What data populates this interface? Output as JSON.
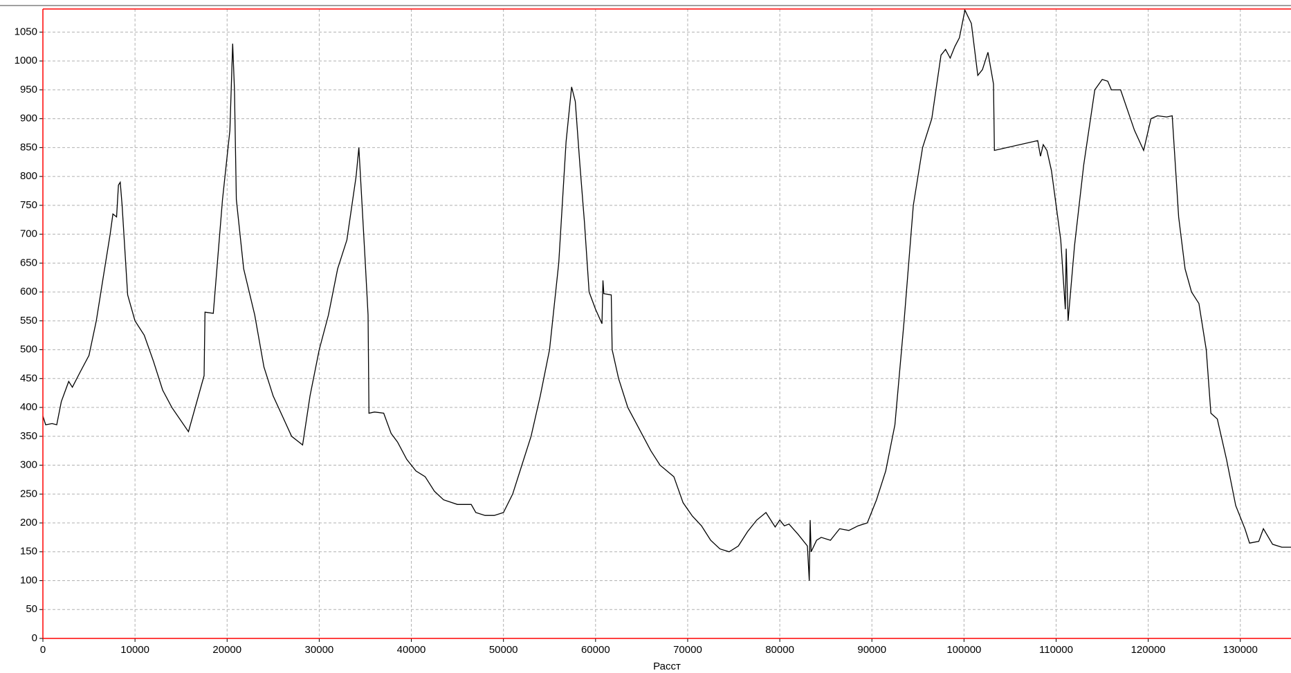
{
  "chart_data": {
    "type": "line",
    "x_label": "Расст",
    "x": [
      0,
      300,
      1000,
      1500,
      2000,
      2800,
      3200,
      4000,
      5000,
      5800,
      6500,
      7300,
      7600,
      8000,
      8200,
      8400,
      8600,
      9200,
      10000,
      11000,
      12000,
      13000,
      14000,
      15800,
      17500,
      17600,
      18500,
      19500,
      20300,
      20600,
      20800,
      21000,
      21800,
      23000,
      24000,
      25000,
      26000,
      27000,
      28200,
      29000,
      30000,
      31000,
      32000,
      33000,
      34000,
      34300,
      35000,
      35300,
      35400,
      36000,
      37000,
      37800,
      38500,
      39500,
      40500,
      41500,
      42500,
      43500,
      45000,
      46500,
      47000,
      48000,
      49000,
      50000,
      51000,
      52000,
      53000,
      54000,
      55000,
      56000,
      56800,
      57400,
      57800,
      58300,
      58800,
      59300,
      60000,
      60700,
      60800,
      60900,
      61700,
      61800,
      62500,
      63500,
      64500,
      65500,
      66000,
      67000,
      68500,
      69500,
      70500,
      71500,
      72500,
      73500,
      74500,
      75500,
      76500,
      77500,
      78500,
      79500,
      80000,
      80500,
      81000,
      82000,
      83000,
      83200,
      83300,
      83400,
      84000,
      84500,
      85500,
      86500,
      87500,
      88500,
      89500,
      90500,
      91500,
      92500,
      93500,
      94500,
      95500,
      96500,
      97500,
      98000,
      98500,
      99000,
      99500,
      100100,
      100800,
      101500,
      102000,
      102600,
      103200,
      103300,
      108000,
      108300,
      108600,
      109000,
      109500,
      110500,
      111000,
      111100,
      111300,
      112000,
      113000,
      114200,
      115000,
      115600,
      116000,
      117000,
      118500,
      119500,
      120300,
      121000,
      122000,
      122600,
      123300,
      124000,
      124700,
      125500,
      126300,
      126800,
      127500,
      128500,
      129500,
      130500,
      131000,
      132000,
      132500,
      133500,
      134500,
      135500
    ],
    "series": [
      {
        "color": "#000000",
        "values": [
          385,
          370,
          372,
          370,
          410,
          445,
          435,
          460,
          490,
          550,
          620,
          700,
          735,
          730,
          785,
          790,
          750,
          595,
          550,
          525,
          480,
          430,
          400,
          358,
          455,
          565,
          563,
          760,
          880,
          1030,
          950,
          760,
          640,
          560,
          470,
          420,
          385,
          350,
          335,
          420,
          500,
          560,
          640,
          690,
          800,
          850,
          650,
          560,
          390,
          392,
          390,
          355,
          340,
          310,
          290,
          280,
          255,
          240,
          232,
          232,
          218,
          213,
          213,
          218,
          250,
          300,
          350,
          420,
          500,
          650,
          860,
          955,
          930,
          820,
          720,
          600,
          570,
          545,
          620,
          597,
          595,
          500,
          450,
          400,
          370,
          340,
          325,
          300,
          280,
          235,
          212,
          195,
          170,
          155,
          150,
          160,
          185,
          205,
          218,
          193,
          205,
          195,
          198,
          180,
          160,
          100,
          205,
          150,
          170,
          175,
          170,
          190,
          187,
          195,
          200,
          240,
          290,
          370,
          550,
          750,
          850,
          900,
          1010,
          1020,
          1005,
          1025,
          1040,
          1088,
          1065,
          975,
          985,
          1015,
          960,
          845,
          862,
          835,
          855,
          845,
          810,
          690,
          570,
          675,
          550,
          680,
          820,
          950,
          968,
          965,
          950,
          950,
          880,
          845,
          900,
          905,
          903,
          905,
          730,
          640,
          600,
          580,
          500,
          390,
          380,
          310,
          230,
          190,
          165,
          168,
          190,
          163,
          158,
          158
        ]
      }
    ],
    "xlim": [
      0,
      135500
    ],
    "ylim": [
      0,
      1090
    ],
    "xticks": [
      0,
      10000,
      20000,
      30000,
      40000,
      50000,
      60000,
      70000,
      80000,
      90000,
      100000,
      110000,
      120000,
      130000
    ],
    "yticks": [
      0,
      50,
      100,
      150,
      200,
      250,
      300,
      350,
      400,
      450,
      500,
      550,
      600,
      650,
      700,
      750,
      800,
      850,
      900,
      950,
      1000,
      1050
    ],
    "grid": true,
    "frame_color": "#ff0000"
  }
}
